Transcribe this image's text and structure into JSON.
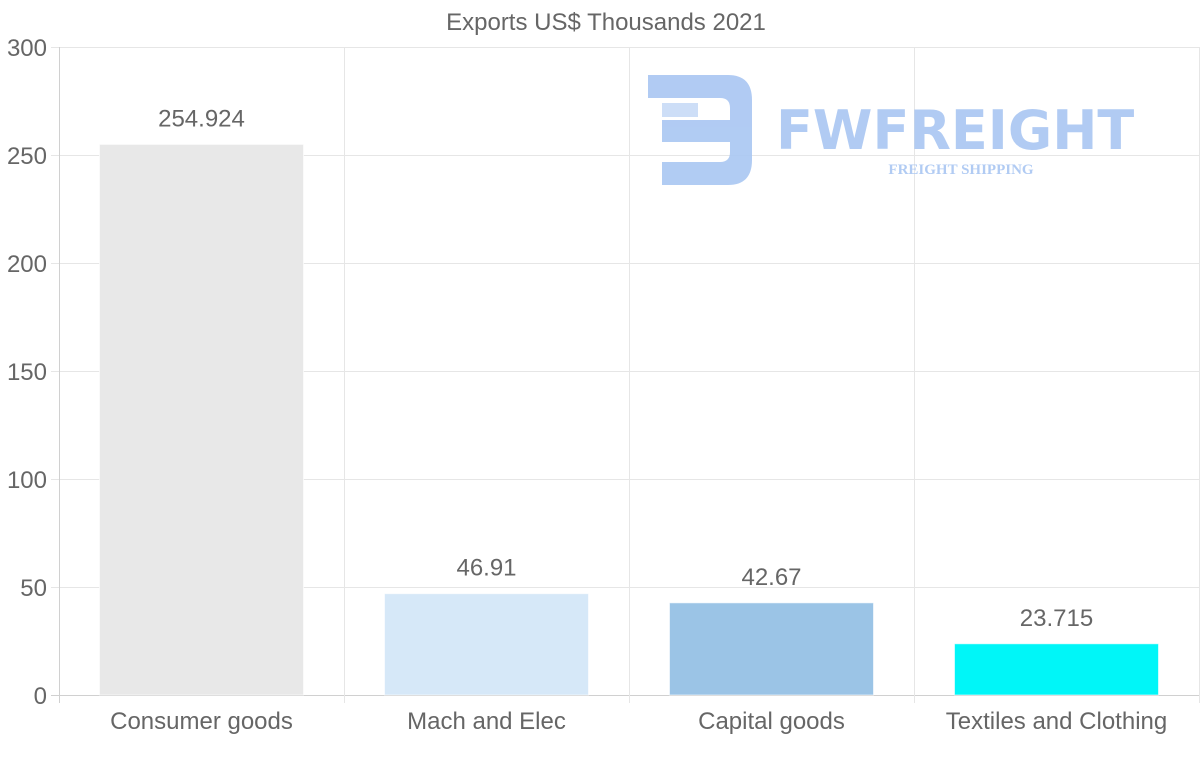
{
  "chart_data": {
    "type": "bar",
    "title": "Exports US$ Thousands 2021",
    "categories": [
      "Consumer goods",
      "Mach and Elec",
      "Capital goods",
      "Textiles and Clothing"
    ],
    "values": [
      254.924,
      46.91,
      42.67,
      23.715
    ],
    "value_labels": [
      "254.924",
      "46.91",
      "42.67",
      "23.715"
    ],
    "bar_colors": [
      "#e8e8e8",
      "#d6e8f8",
      "#9bc4e6",
      "#00f6f8"
    ],
    "xlabel": "",
    "ylabel": "",
    "ylim": [
      0,
      300
    ],
    "yticks": [
      0,
      50,
      100,
      150,
      200,
      250,
      300
    ],
    "grid": true,
    "legend": "none"
  },
  "watermark": {
    "name": "FWFREIGHT",
    "tagline": "FREIGHT SHIPPING",
    "color": "#a9c6f2"
  }
}
